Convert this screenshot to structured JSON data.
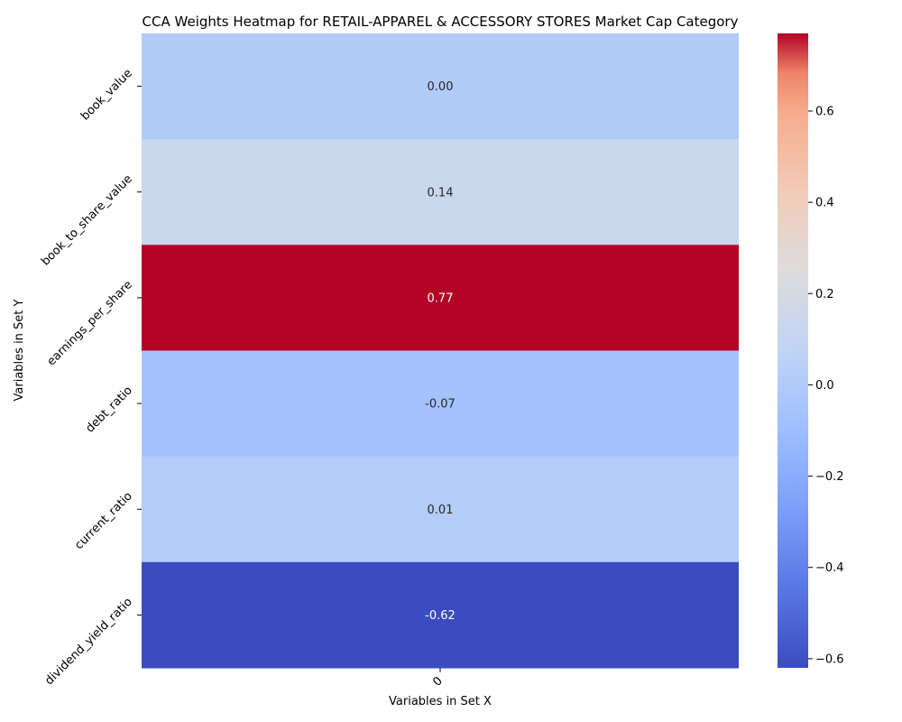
{
  "chart_data": {
    "type": "heatmap",
    "title": "CCA Weights Heatmap for RETAIL-APPAREL & ACCESSORY STORES Market Cap Category",
    "xlabel": "Variables in Set X",
    "ylabel": "Variables in Set Y",
    "x_categories": [
      "0"
    ],
    "y_categories": [
      "book_value",
      "book_to_share_value",
      "earnings_per_share",
      "debt_ratio",
      "current_ratio",
      "dividend_yield_ratio"
    ],
    "values": [
      [
        0.0
      ],
      [
        0.14
      ],
      [
        0.77
      ],
      [
        -0.07
      ],
      [
        0.01
      ],
      [
        -0.62
      ]
    ],
    "cell_labels": [
      "0.00",
      "0.14",
      "0.77",
      "-0.07",
      "0.01",
      "-0.62"
    ],
    "colormap": "coolwarm",
    "colorbar": {
      "range": [
        -0.62,
        0.77
      ],
      "ticks": [
        -0.6,
        -0.4,
        -0.2,
        0.0,
        0.2,
        0.4,
        0.6
      ],
      "tick_labels": [
        "−0.6",
        "−0.4",
        "−0.2",
        "0.0",
        "0.2",
        "0.4",
        "0.6"
      ]
    },
    "grid": false
  }
}
